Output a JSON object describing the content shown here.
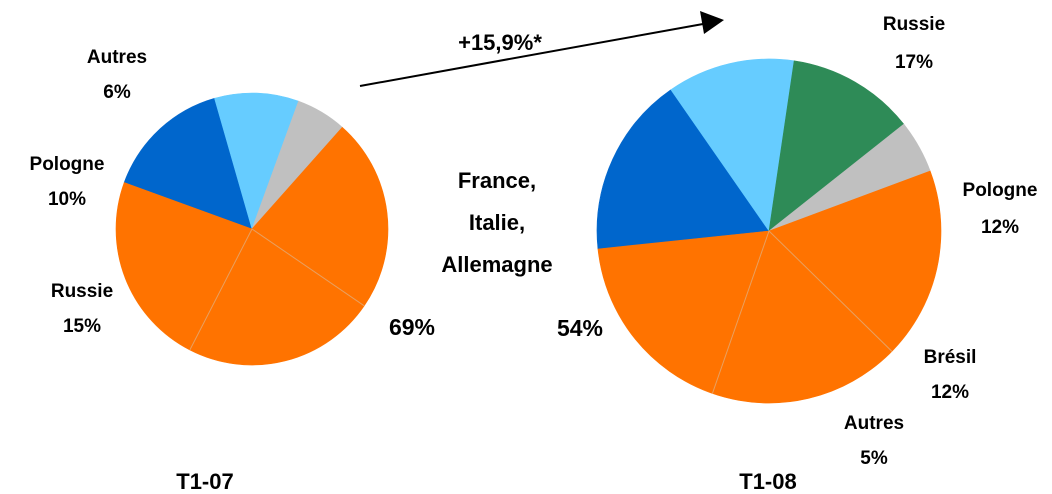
{
  "colors": {
    "orange": "#FF7300",
    "russie": "#0066CC",
    "pologne": "#66CCFF",
    "bresil": "#2E8B57",
    "autres": "#C0C0C0",
    "divider": "#E8A060"
  },
  "growth_label": "+15,9%*",
  "center_label": {
    "line1": "France,",
    "line2": "Italie,",
    "line3": "Allemagne"
  },
  "chart_data": [
    {
      "type": "pie",
      "title": "T1-07",
      "slices": [
        {
          "label": "Russie",
          "value": 15,
          "display": "15%",
          "color": "#0066CC"
        },
        {
          "label": "Pologne",
          "value": 10,
          "display": "10%",
          "color": "#66CCFF"
        },
        {
          "label": "Autres",
          "value": 6,
          "display": "6%",
          "color": "#C0C0C0"
        },
        {
          "label": "France, Italie, Allemagne",
          "value": 69,
          "display": "69%",
          "color": "#FF7300",
          "sub_slices": 3
        }
      ]
    },
    {
      "type": "pie",
      "title": "T1-08",
      "slices": [
        {
          "label": "Russie",
          "value": 17,
          "display": "17%",
          "color": "#0066CC"
        },
        {
          "label": "Pologne",
          "value": 12,
          "display": "12%",
          "color": "#66CCFF"
        },
        {
          "label": "Brésil",
          "value": 12,
          "display": "12%",
          "color": "#2E8B57"
        },
        {
          "label": "Autres",
          "value": 5,
          "display": "5%",
          "color": "#C0C0C0"
        },
        {
          "label": "France, Italie, Allemagne",
          "value": 54,
          "display": "54%",
          "color": "#FF7300",
          "sub_slices": 3
        }
      ]
    }
  ]
}
